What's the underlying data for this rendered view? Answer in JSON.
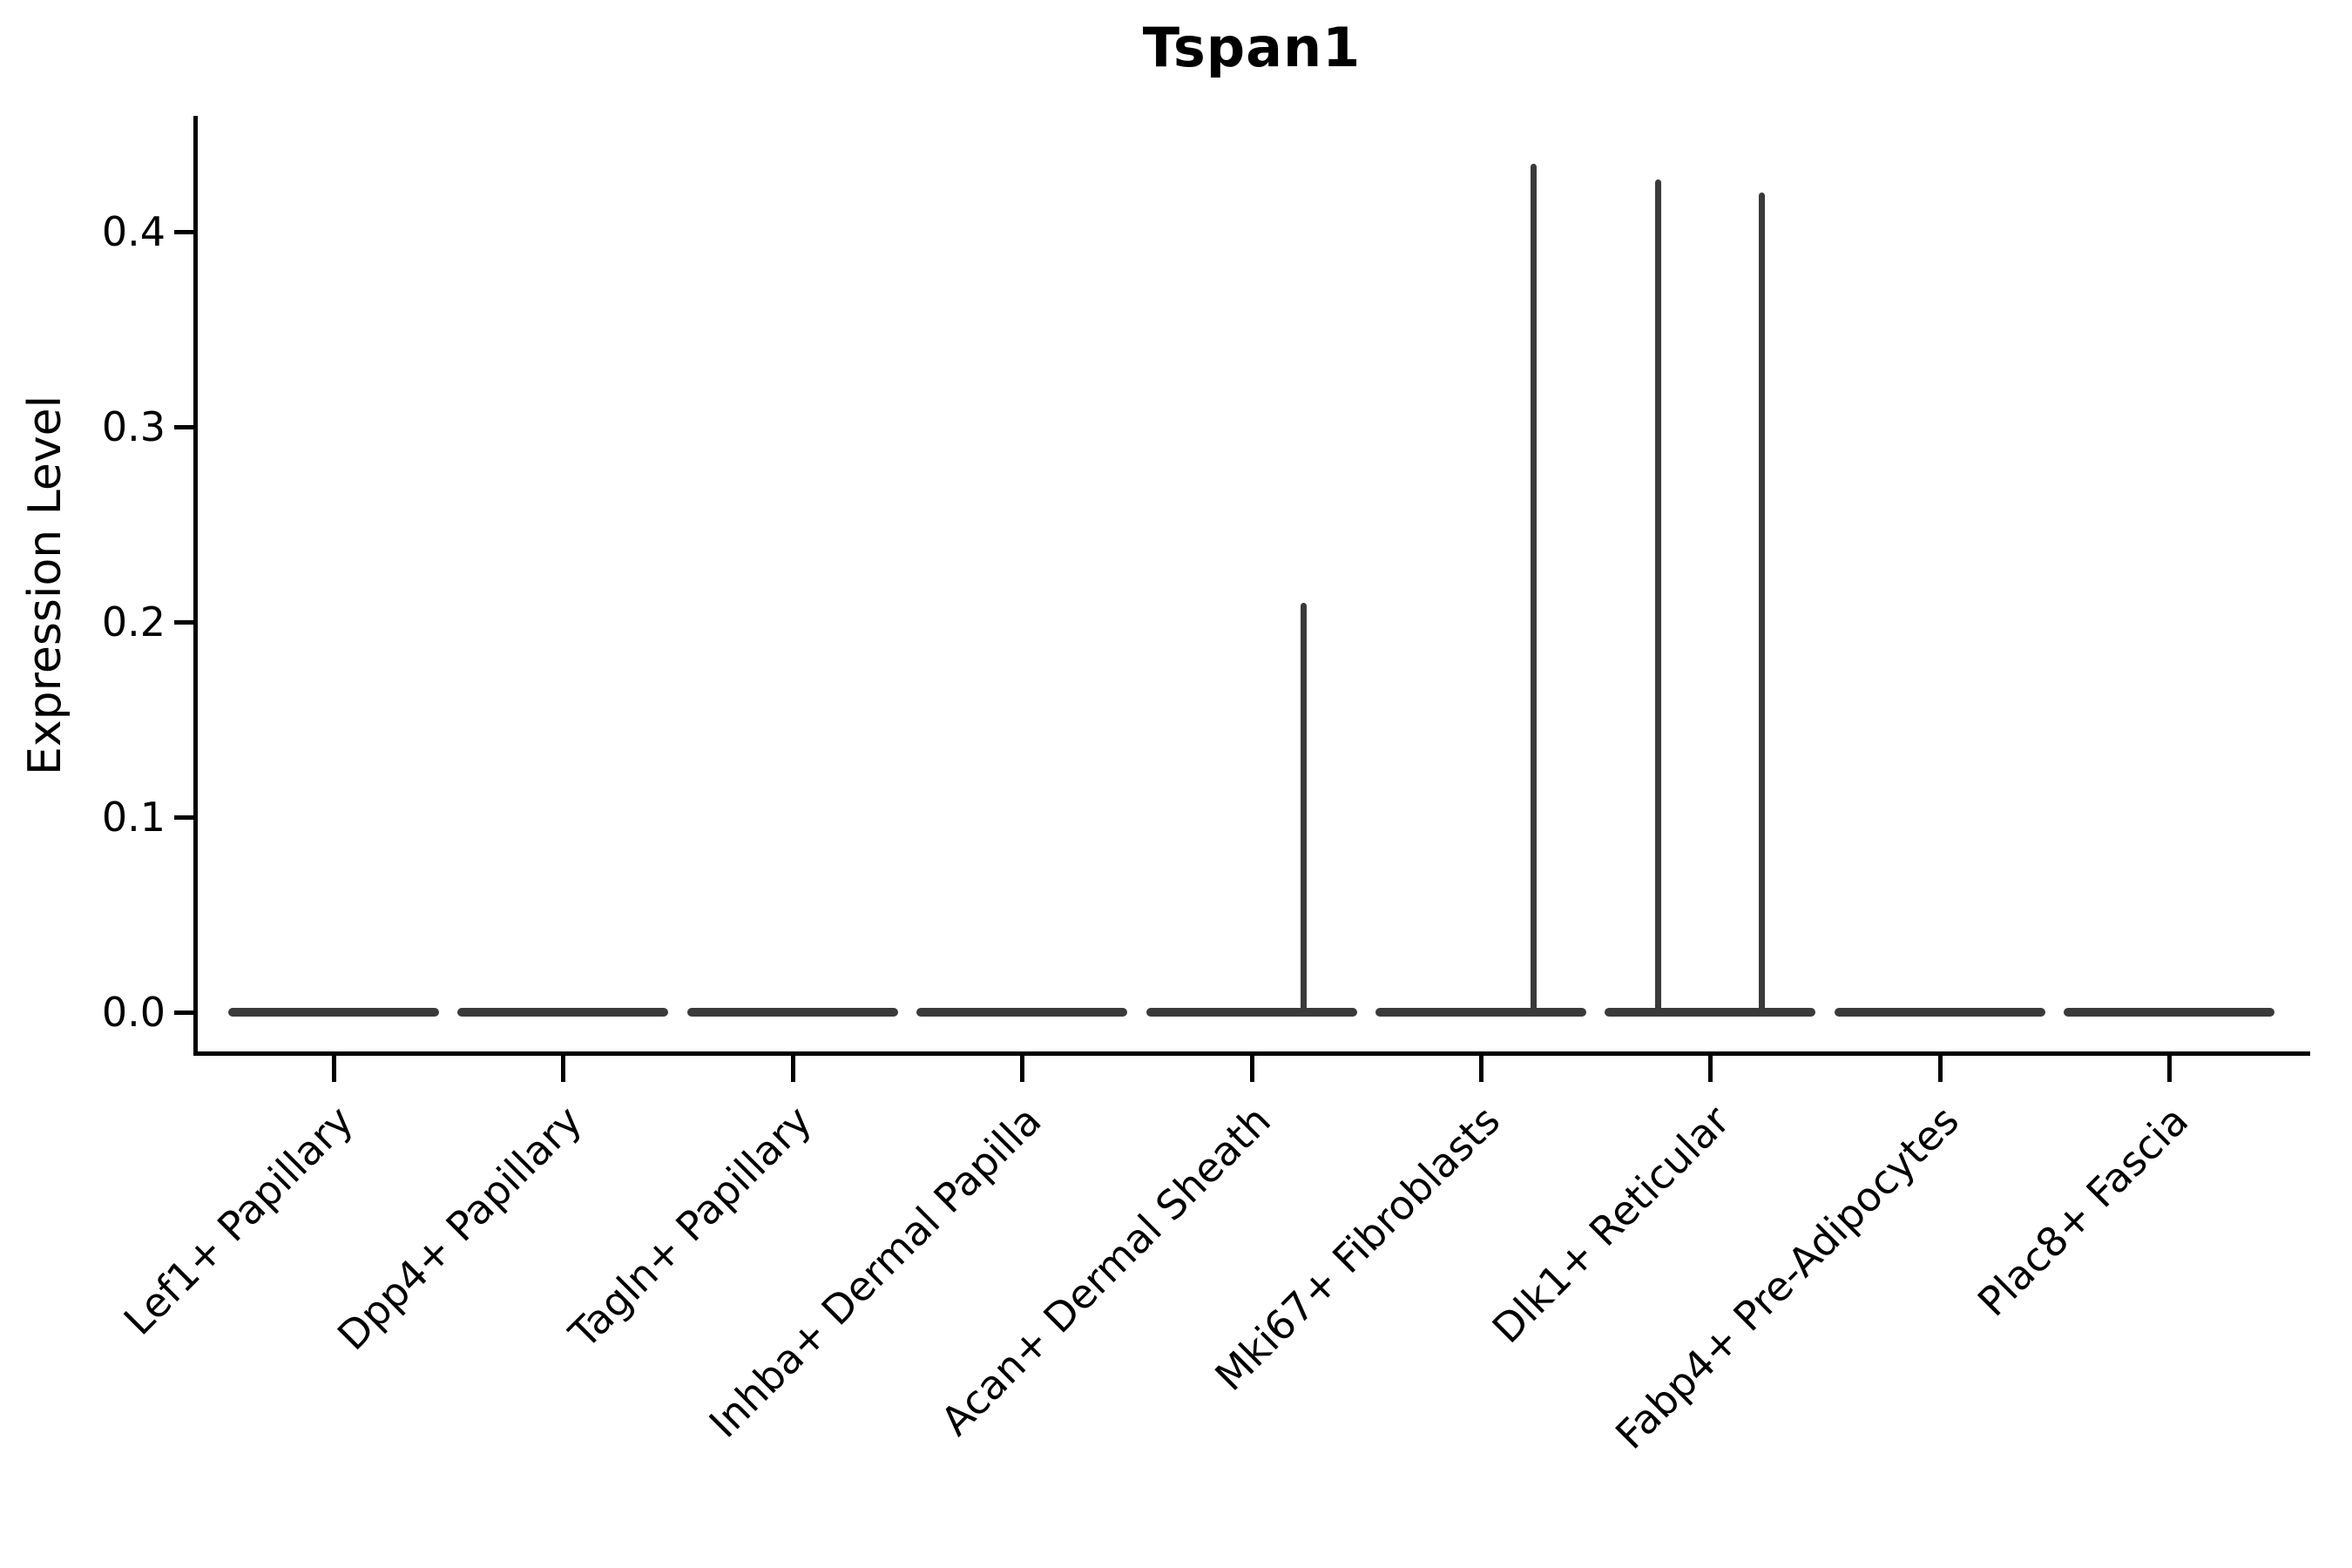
{
  "title": "Tspan1",
  "ylabel": "Expression Level",
  "colors": {
    "violin": "#3a3a3a",
    "axis": "#000000",
    "background": "#ffffff"
  },
  "chart_data": {
    "type": "violin",
    "title": "Tspan1",
    "xlabel": "",
    "ylabel": "Expression Level",
    "ylim": [
      0,
      0.459
    ],
    "yticks": [
      0.0,
      0.1,
      0.2,
      0.3,
      0.4
    ],
    "grid": false,
    "legend_position": "none",
    "categories": [
      "Lef1+ Papillary",
      "Dpp4+ Papillary",
      "Tagln+ Papillary",
      "Inhba+ Dermal Papilla",
      "Acan+ Dermal Sheath",
      "Mki67+ Fibroblasts",
      "Dlk1+ Reticular",
      "Fabp4+ Pre-Adipocytes",
      "Plac8+ Fascia"
    ],
    "series": [
      {
        "name": "Lef1+ Papillary",
        "baseline_value": 0.0,
        "max_value": 0.0,
        "spikes": []
      },
      {
        "name": "Dpp4+ Papillary",
        "baseline_value": 0.0,
        "max_value": 0.0,
        "spikes": []
      },
      {
        "name": "Tagln+ Papillary",
        "baseline_value": 0.0,
        "max_value": 0.0,
        "spikes": []
      },
      {
        "name": "Inhba+ Dermal Papilla",
        "baseline_value": 0.0,
        "max_value": 0.0,
        "spikes": []
      },
      {
        "name": "Acan+ Dermal Sheath",
        "baseline_value": 0.0,
        "max_value": 0.21,
        "spikes": [
          {
            "offset": 0.228,
            "value": 0.21
          }
        ]
      },
      {
        "name": "Mki67+ Fibroblasts",
        "baseline_value": 0.0,
        "max_value": 0.435,
        "spikes": [
          {
            "offset": 0.228,
            "value": 0.435
          }
        ]
      },
      {
        "name": "Dlk1+ Reticular",
        "baseline_value": 0.0,
        "max_value": 0.427,
        "spikes": [
          {
            "offset": -0.228,
            "value": 0.427
          },
          {
            "offset": 0.224,
            "value": 0.42
          }
        ]
      },
      {
        "name": "Fabp4+ Pre-Adipocytes",
        "baseline_value": 0.0,
        "max_value": 0.0,
        "spikes": []
      },
      {
        "name": "Plac8+ Fascia",
        "baseline_value": 0.0,
        "max_value": 0.0,
        "spikes": []
      }
    ]
  }
}
